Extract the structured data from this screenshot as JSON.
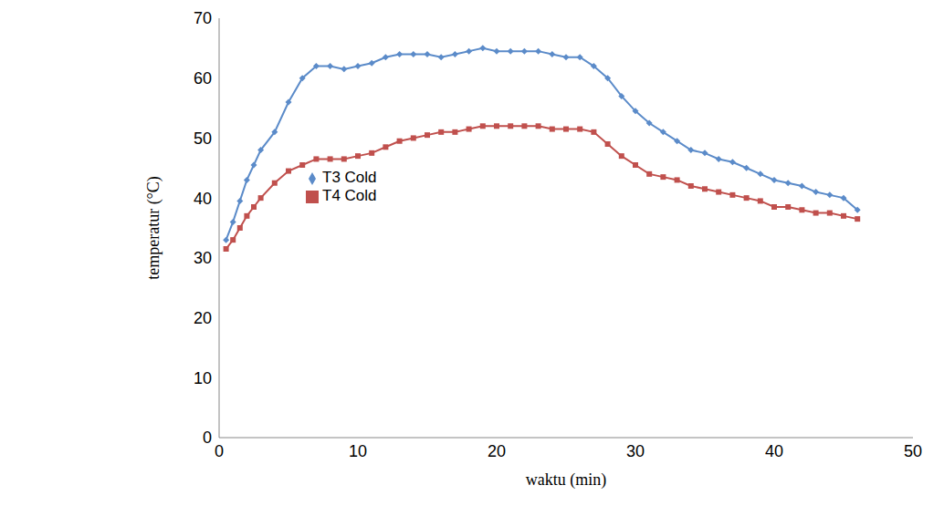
{
  "chart_data": {
    "type": "line",
    "x_label": "waktu (min)",
    "y_label": "temperatur (°C)",
    "x": [
      0.5,
      1,
      1.5,
      2,
      2.5,
      3,
      4,
      5,
      6,
      7,
      8,
      9,
      10,
      11,
      12,
      13,
      14,
      15,
      16,
      17,
      18,
      19,
      20,
      21,
      22,
      23,
      24,
      25,
      26,
      27,
      28,
      29,
      30,
      31,
      32,
      33,
      34,
      35,
      36,
      37,
      38,
      39,
      40,
      41,
      42,
      43,
      44,
      45,
      46
    ],
    "series": [
      {
        "name": "T3 Cold",
        "color": "#5B8BC9",
        "marker": "diamond",
        "values": [
          33,
          36,
          39.5,
          43,
          45.5,
          48,
          51,
          56,
          60,
          62,
          62,
          61.5,
          62,
          62.5,
          63.5,
          64,
          64,
          64,
          63.5,
          64,
          64.5,
          65,
          64.5,
          64.5,
          64.5,
          64.5,
          64,
          63.5,
          63.5,
          62,
          60,
          57,
          54.5,
          52.5,
          51,
          49.5,
          48,
          47.5,
          46.5,
          46,
          45,
          44,
          43,
          42.5,
          42,
          41,
          40.5,
          40,
          38
        ]
      },
      {
        "name": "T4 Cold",
        "color": "#C0504D",
        "marker": "square",
        "values": [
          31.5,
          33,
          35,
          37,
          38.5,
          40,
          42.5,
          44.5,
          45.5,
          46.5,
          46.5,
          46.5,
          47,
          47.5,
          48.5,
          49.5,
          50,
          50.5,
          51,
          51,
          51.5,
          52,
          52,
          52,
          52,
          52,
          51.5,
          51.5,
          51.5,
          51,
          49,
          47,
          45.5,
          44,
          43.5,
          43,
          42,
          41.5,
          41,
          40.5,
          40,
          39.5,
          38.5,
          38.5,
          38,
          37.5,
          37.5,
          37,
          36.5
        ]
      }
    ],
    "xlim": [
      0,
      50
    ],
    "xticks": [
      0,
      10,
      20,
      30,
      40,
      50
    ],
    "ylim": [
      0,
      70
    ],
    "yticks": [
      0,
      10,
      20,
      30,
      40,
      50,
      60,
      70
    ],
    "legend": "center",
    "grid": false
  }
}
